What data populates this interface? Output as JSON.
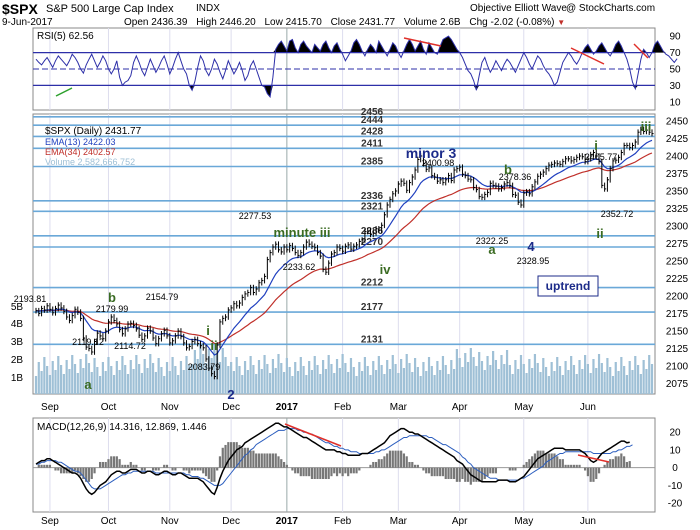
{
  "header": {
    "symbol": "$SPX",
    "name": "S&P 500 Large Cap Index",
    "exchange": "INDX",
    "date": "9-Jun-2017",
    "open_label": "Open",
    "open": "2436.39",
    "high_label": "High",
    "high": "2446.20",
    "low_label": "Low",
    "low": "2415.70",
    "close_label": "Close",
    "close": "2431.77",
    "volume_label": "Volume",
    "volume": "2.6B",
    "chg_label": "Chg",
    "chg": "-2.02 (-0.08%)",
    "source": "Objective Elliott Wave",
    "copyright": "@ StockCharts.com"
  },
  "chart_data": [
    {
      "type": "line",
      "panel": "rsi",
      "legend": "RSI(5) 62.56",
      "ylim": [
        0,
        100
      ],
      "yticks": [
        10,
        30,
        50,
        70,
        90
      ],
      "overbought": 70,
      "oversold": 30,
      "midline": 50,
      "values": [
        62,
        58,
        55,
        60,
        64,
        58,
        52,
        60,
        66,
        62,
        58,
        54,
        60,
        68,
        64,
        58,
        50,
        45,
        55,
        62,
        68,
        60,
        52,
        58,
        66,
        60,
        50,
        44,
        50,
        60,
        40,
        30,
        34,
        36,
        42,
        58,
        66,
        58,
        48,
        42,
        52,
        62,
        54,
        46,
        52,
        60,
        66,
        56,
        44,
        52,
        62,
        70,
        60,
        50,
        44,
        30,
        24,
        35,
        52,
        66,
        60,
        48,
        42,
        50,
        62,
        56,
        46,
        38,
        48,
        60,
        52,
        44,
        50,
        58,
        48,
        36,
        42,
        54,
        60,
        50,
        40,
        30,
        28,
        20,
        16,
        40,
        74,
        80,
        84,
        78,
        72,
        84,
        86,
        76,
        70,
        80,
        84,
        78,
        74,
        70,
        80,
        76,
        72,
        80,
        84,
        76,
        70,
        78,
        82,
        74,
        68,
        60,
        66,
        72,
        82,
        86,
        80,
        72,
        66,
        74,
        80,
        76,
        70,
        84,
        78,
        72,
        66,
        74,
        82,
        78,
        70,
        64,
        72,
        80,
        86,
        80,
        72,
        78,
        84,
        74,
        68,
        82,
        76,
        70,
        68,
        78,
        86,
        88,
        90,
        86,
        80,
        74,
        70,
        64,
        56,
        48,
        44,
        36,
        24,
        42,
        58,
        64,
        54,
        46,
        52,
        60,
        54,
        48,
        56,
        62,
        58,
        52,
        46,
        54,
        62,
        70,
        64,
        56,
        50,
        58,
        66,
        62,
        54,
        48,
        44,
        38,
        30,
        34,
        46,
        58,
        64,
        70,
        66,
        60,
        56,
        62,
        70,
        76,
        80,
        74,
        68,
        72,
        78,
        82,
        76,
        70,
        66,
        72,
        80,
        84,
        78,
        70,
        62,
        50,
        34,
        26,
        44,
        62,
        74,
        70,
        64,
        70,
        80,
        84,
        78,
        72,
        68,
        66,
        62,
        58,
        62.56
      ],
      "annotation_marks": [
        "green-divergence",
        "red-divergence",
        "red-divergence",
        "red-divergence"
      ]
    },
    {
      "type": "line",
      "panel": "price",
      "title": "$SPX (Daily) 2431.77",
      "x_axis": [
        "Sep",
        "Oct",
        "Nov",
        "Dec",
        "2017",
        "Feb",
        "Mar",
        "Apr",
        "May",
        "Jun"
      ],
      "ylim": [
        2060,
        2460
      ],
      "yticks": [
        2075,
        2100,
        2125,
        2150,
        2175,
        2200,
        2225,
        2250,
        2275,
        2300,
        2325,
        2350,
        2375,
        2400,
        2425,
        2450
      ],
      "volume_ticks": [
        "1B",
        "2B",
        "3B",
        "4B",
        "5B"
      ],
      "series": [
        {
          "name": "$SPX (Daily) 2431.77",
          "color": "#000000"
        },
        {
          "name": "EMA(13) 2422.03",
          "color": "#1f3fbf"
        },
        {
          "name": "EMA(34) 2402.57",
          "color": "#c0302a"
        },
        {
          "name": "Volume 2,582,666,752",
          "color": "#9fc0d6"
        }
      ],
      "close": [
        2179,
        2175,
        2182,
        2180,
        2186,
        2181,
        2176,
        2182,
        2187,
        2183,
        2178,
        2170,
        2165,
        2172,
        2181,
        2177,
        2168,
        2140,
        2127,
        2125,
        2120,
        2135,
        2147,
        2143,
        2139,
        2150,
        2163,
        2170,
        2165,
        2160,
        2152,
        2146,
        2153,
        2160,
        2161,
        2158,
        2153,
        2144,
        2138,
        2143,
        2154,
        2150,
        2140,
        2132,
        2139,
        2146,
        2151,
        2143,
        2133,
        2136,
        2143,
        2150,
        2142,
        2133,
        2126,
        2128,
        2135,
        2138,
        2132,
        2129,
        2126,
        2110,
        2097,
        2089,
        2085,
        2130,
        2163,
        2168,
        2170,
        2180,
        2183,
        2189,
        2186,
        2190,
        2198,
        2203,
        2205,
        2212,
        2205,
        2210,
        2219,
        2222,
        2228,
        2252,
        2262,
        2270,
        2274,
        2266,
        2263,
        2270,
        2266,
        2272,
        2268,
        2262,
        2258,
        2262,
        2270,
        2277,
        2274,
        2271,
        2269,
        2262,
        2257,
        2238,
        2234,
        2247,
        2260,
        2262,
        2270,
        2268,
        2264,
        2271,
        2273,
        2267,
        2271,
        2273,
        2278,
        2280,
        2292,
        2293,
        2288,
        2290,
        2296,
        2294,
        2301,
        2316,
        2330,
        2338,
        2346,
        2350,
        2360,
        2364,
        2361,
        2351,
        2362,
        2370,
        2380,
        2395,
        2400,
        2389,
        2381,
        2383,
        2372,
        2370,
        2364,
        2366,
        2362,
        2366,
        2372,
        2365,
        2380,
        2382,
        2384,
        2374,
        2372,
        2367,
        2366,
        2355,
        2352,
        2342,
        2341,
        2345,
        2348,
        2361,
        2358,
        2357,
        2353,
        2355,
        2360,
        2362,
        2358,
        2345,
        2344,
        2334,
        2330,
        2347,
        2349,
        2346,
        2356,
        2363,
        2371,
        2374,
        2377,
        2382,
        2387,
        2388,
        2390,
        2389,
        2388,
        2392,
        2396,
        2396,
        2393,
        2395,
        2398,
        2400,
        2399,
        2392,
        2396,
        2402,
        2405,
        2400,
        2392,
        2358,
        2353,
        2366,
        2382,
        2393,
        2394,
        2398,
        2405,
        2415,
        2415,
        2412,
        2415,
        2420,
        2434,
        2438,
        2435,
        2437,
        2434,
        2432
      ],
      "price_labels": [
        "2193.81",
        "2179.99",
        "2119.12",
        "2154.79",
        "2114.72",
        "2083.79",
        "2277.53",
        "2233.62",
        "2400.98",
        "2322.25",
        "2378.36",
        "2328.95",
        "2405.77",
        "2352.72"
      ],
      "level_lines": [
        "2456",
        "2444",
        "2428",
        "2411",
        "2385",
        "2336",
        "2321",
        "2286",
        "2270",
        "2212",
        "2177",
        "2131"
      ],
      "level_values": [
        2456,
        2444,
        2428,
        2411,
        2385,
        2336,
        2321,
        2286,
        2270,
        2212,
        2177,
        2131
      ],
      "wave_labels": [
        "a",
        "b",
        "i",
        "ii",
        "2",
        "minute iii",
        "iv",
        "minor 3",
        "a",
        "b",
        "4",
        "i",
        "ii",
        "iii"
      ],
      "uptrend_label": "uptrend"
    },
    {
      "type": "line",
      "panel": "macd",
      "legend": "MACD(12,26,9) 14.316, 12.869, 1.446",
      "ylim": [
        -25,
        28
      ],
      "yticks": [
        -20,
        -10,
        0,
        10,
        20
      ],
      "x_axis": [
        "Sep",
        "Oct",
        "Nov",
        "Dec",
        "2017",
        "Feb",
        "Mar",
        "Apr",
        "May",
        "Jun"
      ],
      "macd": [
        2,
        3,
        4,
        4,
        5,
        5,
        4,
        3,
        2,
        1,
        0,
        -1,
        -2,
        -3,
        -3,
        -4,
        -6,
        -9,
        -12,
        -14,
        -15,
        -14,
        -12,
        -10,
        -9,
        -8,
        -6,
        -4,
        -3,
        -2,
        -2,
        -3,
        -3,
        -2,
        -1,
        -1,
        -1,
        -2,
        -3,
        -3,
        -2,
        -2,
        -3,
        -4,
        -4,
        -3,
        -2,
        -2,
        -3,
        -4,
        -4,
        -3,
        -3,
        -4,
        -5,
        -6,
        -6,
        -6,
        -6,
        -7,
        -8,
        -10,
        -12,
        -14,
        -15,
        -11,
        -6,
        -2,
        1,
        4,
        6,
        8,
        10,
        11,
        12,
        14,
        15,
        16,
        17,
        18,
        19,
        20,
        21,
        22,
        23,
        24,
        25,
        25,
        24,
        23,
        23,
        22,
        21,
        20,
        19,
        18,
        17,
        17,
        16,
        15,
        14,
        13,
        12,
        11,
        10,
        10,
        10,
        10,
        9,
        9,
        8,
        8,
        7,
        7,
        7,
        7,
        7,
        8,
        8,
        8,
        9,
        10,
        11,
        12,
        13,
        14,
        16,
        18,
        19,
        20,
        21,
        22,
        22,
        21,
        20,
        20,
        19,
        19,
        18,
        17,
        16,
        15,
        14,
        13,
        12,
        11,
        10,
        9,
        8,
        7,
        6,
        4,
        3,
        2,
        0,
        -2,
        -4,
        -5,
        -6,
        -7,
        -8,
        -8,
        -8,
        -8,
        -8,
        -8,
        -7,
        -7,
        -7,
        -7,
        -8,
        -8,
        -8,
        -7,
        -6,
        -5,
        -3,
        -1,
        1,
        3,
        5,
        6,
        7,
        8,
        9,
        10,
        11,
        11,
        11,
        11,
        10,
        10,
        10,
        10,
        10,
        10,
        9,
        8,
        6,
        4,
        3,
        4,
        6,
        8,
        9,
        10,
        11,
        12,
        13,
        14,
        15,
        15,
        14,
        14.316
      ],
      "signal": [
        2,
        2,
        3,
        3,
        4,
        4,
        4,
        4,
        3,
        3,
        2,
        1,
        0,
        -1,
        -2,
        -2,
        -3,
        -5,
        -7,
        -9,
        -11,
        -12,
        -12,
        -12,
        -11,
        -10,
        -9,
        -8,
        -7,
        -6,
        -5,
        -4,
        -4,
        -3,
        -3,
        -2,
        -2,
        -2,
        -2,
        -2,
        -2,
        -2,
        -2,
        -3,
        -3,
        -3,
        -3,
        -3,
        -3,
        -3,
        -3,
        -3,
        -3,
        -3,
        -4,
        -4,
        -5,
        -5,
        -5,
        -6,
        -6,
        -7,
        -8,
        -9,
        -10,
        -10,
        -10,
        -9,
        -7,
        -5,
        -3,
        -1,
        1,
        3,
        5,
        7,
        8,
        10,
        11,
        13,
        14,
        15,
        16,
        17,
        18,
        19,
        20,
        21,
        21,
        21,
        22,
        22,
        22,
        22,
        21,
        21,
        20,
        20,
        19,
        19,
        18,
        17,
        16,
        15,
        14,
        14,
        13,
        12,
        12,
        11,
        11,
        10,
        10,
        9,
        9,
        9,
        8,
        8,
        8,
        8,
        8,
        8,
        9,
        9,
        10,
        10,
        11,
        12,
        13,
        14,
        15,
        16,
        17,
        17,
        18,
        18,
        18,
        18,
        18,
        18,
        18,
        17,
        17,
        16,
        15,
        14,
        13,
        13,
        12,
        11,
        10,
        9,
        8,
        6,
        5,
        3,
        2,
        0,
        -1,
        -2,
        -3,
        -4,
        -5,
        -6,
        -6,
        -6,
        -7,
        -7,
        -7,
        -7,
        -7,
        -7,
        -7,
        -7,
        -6,
        -6,
        -5,
        -4,
        -3,
        -2,
        -1,
        0,
        1,
        3,
        4,
        5,
        6,
        7,
        8,
        8,
        9,
        9,
        9,
        9,
        9,
        9,
        9,
        9,
        9,
        9,
        8,
        8,
        8,
        8,
        8,
        8,
        8,
        9,
        9,
        10,
        10,
        11,
        12,
        12,
        12.869
      ]
    }
  ]
}
